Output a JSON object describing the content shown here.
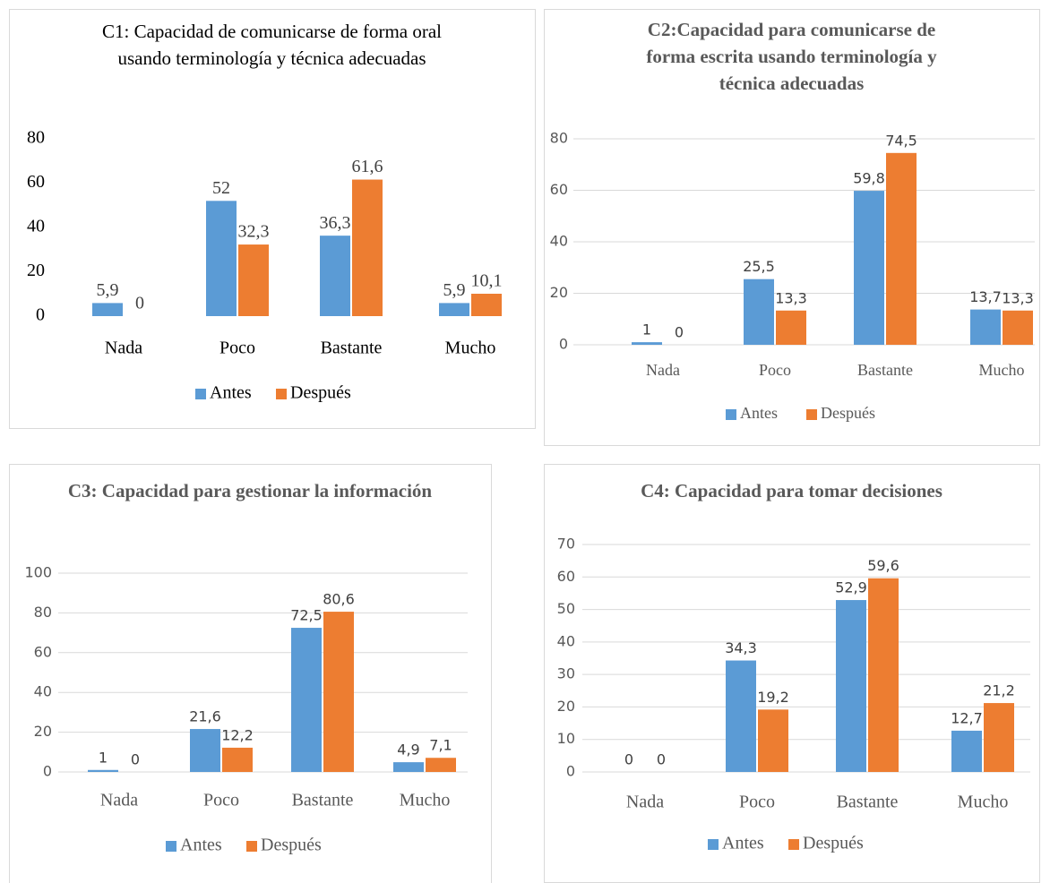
{
  "chart_data": [
    {
      "type": "bar",
      "title": "C1: Capacidad de comunicarse de forma oral usando terminología y técnica adecuadas",
      "categories": [
        "Nada",
        "Poco",
        "Bastante",
        "Mucho"
      ],
      "series": [
        {
          "name": "Antes",
          "color": "#5b9bd5",
          "values": [
            5.9,
            52,
            36.3,
            5.9
          ],
          "value_labels": [
            "5,9",
            "52",
            "36,3",
            "5,9"
          ]
        },
        {
          "name": "Después",
          "color": "#ed7d31",
          "values": [
            0,
            32.3,
            61.6,
            10.1
          ],
          "value_labels": [
            "0",
            "32,3",
            "61,6",
            "10,1"
          ]
        }
      ],
      "ylim": [
        0,
        80
      ],
      "yticks": [
        0,
        20,
        40,
        60,
        80
      ],
      "grid": false,
      "legend": "bottom"
    },
    {
      "type": "bar",
      "title": "C2:Capacidad para comunicarse de forma escrita usando terminología y técnica adecuadas",
      "categories": [
        "Nada",
        "Poco",
        "Bastante",
        "Mucho"
      ],
      "series": [
        {
          "name": "Antes",
          "color": "#5b9bd5",
          "values": [
            1,
            25.5,
            59.8,
            13.7
          ],
          "value_labels": [
            "1",
            "25,5",
            "59,8",
            "13,7"
          ]
        },
        {
          "name": "Después",
          "color": "#ed7d31",
          "values": [
            0,
            13.3,
            74.5,
            13.3
          ],
          "value_labels": [
            "0",
            "13,3",
            "74,5",
            "13,3"
          ]
        }
      ],
      "ylim": [
        0,
        80
      ],
      "yticks": [
        0,
        20,
        40,
        60,
        80
      ],
      "grid": true,
      "legend": "bottom"
    },
    {
      "type": "bar",
      "title": "C3: Capacidad para gestionar la información",
      "categories": [
        "Nada",
        "Poco",
        "Bastante",
        "Mucho"
      ],
      "series": [
        {
          "name": "Antes",
          "color": "#5b9bd5",
          "values": [
            1,
            21.6,
            72.5,
            4.9
          ],
          "value_labels": [
            "1",
            "21,6",
            "72,5",
            "4,9"
          ]
        },
        {
          "name": "Después",
          "color": "#ed7d31",
          "values": [
            0,
            12.2,
            80.6,
            7.1
          ],
          "value_labels": [
            "0",
            "12,2",
            "80,6",
            "7,1"
          ]
        }
      ],
      "ylim": [
        0,
        100
      ],
      "yticks": [
        0,
        20,
        40,
        60,
        80,
        100
      ],
      "grid": true,
      "legend": "bottom"
    },
    {
      "type": "bar",
      "title": "C4: Capacidad para tomar decisiones",
      "categories": [
        "Nada",
        "Poco",
        "Bastante",
        "Mucho"
      ],
      "series": [
        {
          "name": "Antes",
          "color": "#5b9bd5",
          "values": [
            0,
            34.3,
            52.9,
            12.7
          ],
          "value_labels": [
            "0",
            "34,3",
            "52,9",
            "12,7"
          ]
        },
        {
          "name": "Después",
          "color": "#ed7d31",
          "values": [
            0,
            19.2,
            59.6,
            21.2
          ],
          "value_labels": [
            "0",
            "19,2",
            "59,6",
            "21,2"
          ]
        }
      ],
      "ylim": [
        0,
        70
      ],
      "yticks": [
        0,
        10,
        20,
        30,
        40,
        50,
        60,
        70
      ],
      "grid": true,
      "legend": "bottom"
    }
  ]
}
